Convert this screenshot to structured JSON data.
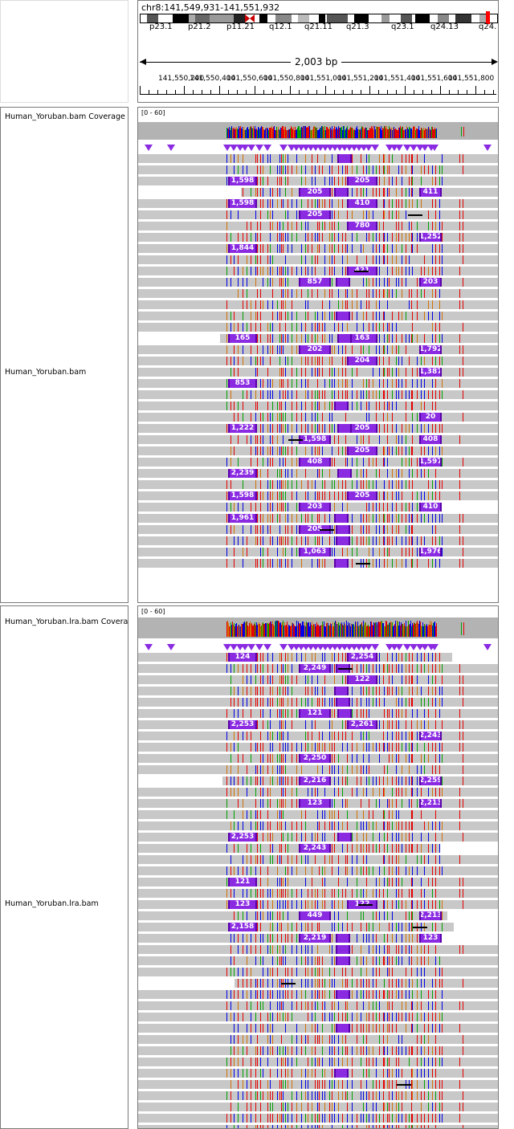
{
  "header": {
    "locus": "chr8:141,549,931-141,551,932",
    "bands": [
      "p23.1",
      "p21.2",
      "p11.21",
      "q12.1",
      "q21.11",
      "q21.3",
      "q23.1",
      "q24.13",
      "q24."
    ],
    "span": "2,003 bp",
    "ruler_ticks": [
      "141,550,200",
      "141,550,400",
      "141,550,600",
      "141,550,800",
      "141,551,000",
      "141,551,200",
      "141,551,400",
      "141,551,600",
      "141,551,800"
    ]
  },
  "tracks": [
    {
      "coverage_name": "Human_Yoruban.bam Coverage",
      "range": "[0 - 60]",
      "reads_name": "Human_Yoruban.bam",
      "insertion_labels": [
        "205",
        "1,598",
        "411",
        "205",
        "1,598",
        "410",
        "205",
        "780",
        "1,252",
        "1,844",
        "421",
        "203",
        "857",
        "165",
        "163",
        "202",
        "1,792",
        "204",
        "1,387",
        "853",
        "20",
        "1,222",
        "205",
        "1,598",
        "408",
        "205",
        "1,597",
        "408",
        "2,239",
        "205",
        "1,598",
        "410",
        "203",
        "1,961",
        "205",
        "1,976",
        "1,063"
      ]
    },
    {
      "coverage_name": "Human_Yoruban.lra.bam Coverage",
      "range": "[0 - 60]",
      "reads_name": "Human_Yoruban.lra.bam",
      "insertion_labels": [
        "124",
        "2,254",
        "2,249",
        "122",
        "121",
        "2,261",
        "2,253",
        "2,243",
        "2,250",
        "2,259",
        "2,216",
        "123",
        "2,213",
        "2,253",
        "2,243",
        "121",
        "122",
        "123",
        "2,213",
        "449",
        "2,158",
        "2,219",
        "123"
      ]
    }
  ],
  "colors": {
    "A": "#00a000",
    "C": "#0000e6",
    "G": "#d17105",
    "T": "#e60000",
    "insertion": "#8a2be2",
    "read": "#c8c8c8"
  }
}
